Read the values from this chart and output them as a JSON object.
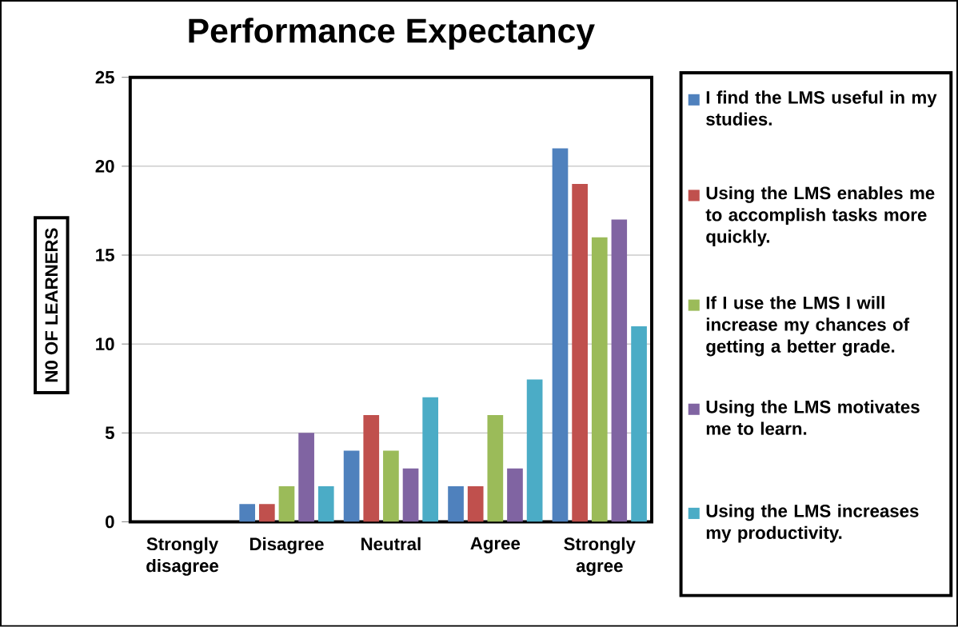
{
  "chart_data": {
    "type": "bar",
    "title": "Performance Expectancy",
    "ylabel": "N0 OF LEARNERS",
    "categories": [
      "Strongly disagree",
      "Disagree",
      "Neutral",
      "Agree",
      "Strongly agree"
    ],
    "series": [
      {
        "name": "I find the LMS useful in my studies.",
        "color": "#4f81bd",
        "values": [
          0,
          1,
          4,
          2,
          21
        ]
      },
      {
        "name": "Using the LMS enables me to accomplish tasks more quickly.",
        "color": "#c0504d",
        "values": [
          0,
          1,
          6,
          2,
          19
        ]
      },
      {
        "name": "If I use the LMS I will increase my chances of getting a better grade.",
        "color": "#9bbb59",
        "values": [
          0,
          2,
          4,
          6,
          16
        ]
      },
      {
        "name": "Using the LMS motivates me to learn.",
        "color": "#8064a2",
        "values": [
          0,
          5,
          3,
          3,
          17
        ]
      },
      {
        "name": "Using the LMS increases my productivity.",
        "color": "#4bacc6",
        "values": [
          0,
          2,
          7,
          8,
          11
        ]
      }
    ],
    "ylim": [
      0,
      25
    ],
    "yticks": [
      0,
      5,
      10,
      15,
      20,
      25
    ],
    "grid": "y",
    "legend": "right"
  }
}
